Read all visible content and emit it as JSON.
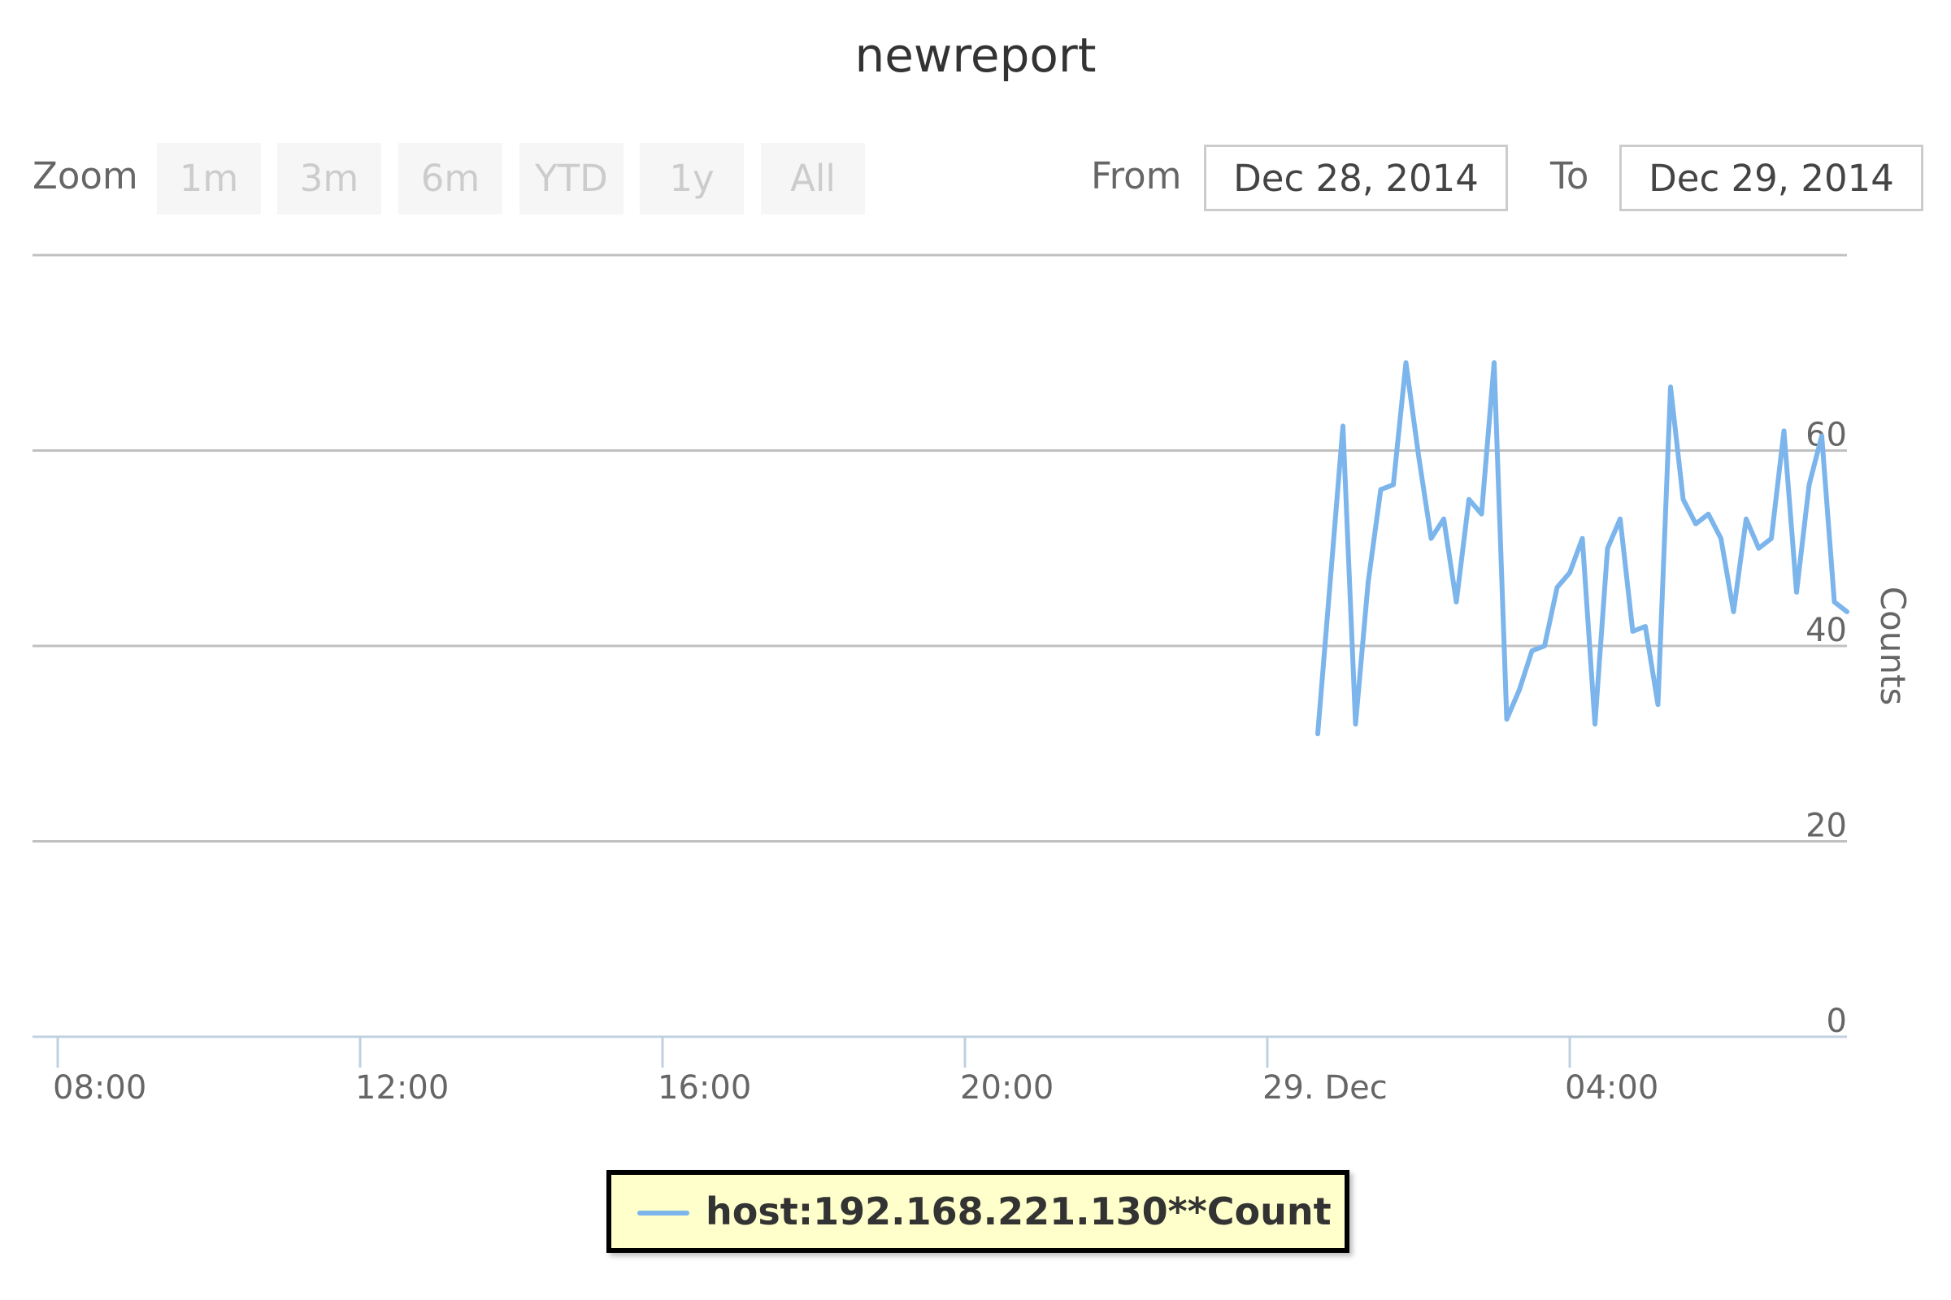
{
  "title": "newreport",
  "range_selector": {
    "zoom_label": "Zoom",
    "buttons": [
      "1m",
      "3m",
      "6m",
      "YTD",
      "1y",
      "All"
    ],
    "from_label": "From",
    "from_value": "Dec 28, 2014",
    "to_label": "To",
    "to_value": "Dec 29, 2014"
  },
  "colors": {
    "series": "#7cb5ec",
    "grid": "#c0c0c0",
    "axis": "#c0d0e0",
    "legend_bg": "#ffffcc"
  },
  "legend": {
    "label": "host:192.168.221.130**Count",
    "placement": "bottom-center"
  },
  "chart_data": {
    "type": "line",
    "title": "newreport",
    "ylabel": "Counts",
    "xlabel": "",
    "grid": true,
    "ylim": [
      0,
      80
    ],
    "xlim": [
      "2014-12-28 07:40",
      "2014-12-29 07:40"
    ],
    "x_ticks": [
      {
        "time": "2014-12-28 08:00",
        "label": "08:00"
      },
      {
        "time": "2014-12-28 12:00",
        "label": "12:00"
      },
      {
        "time": "2014-12-28 16:00",
        "label": "16:00"
      },
      {
        "time": "2014-12-28 20:00",
        "label": "20:00"
      },
      {
        "time": "2014-12-29 00:00",
        "label": "29. Dec"
      },
      {
        "time": "2014-12-29 04:00",
        "label": "04:00"
      }
    ],
    "y_ticks": [
      0,
      20,
      40,
      60,
      80
    ],
    "y_tick_labels": [
      "0",
      "20",
      "40",
      "60"
    ],
    "series": [
      {
        "name": "host:192.168.221.130**Count",
        "points": [
          [
            "2014-12-29 00:40",
            31
          ],
          [
            "2014-12-29 01:00",
            62.5
          ],
          [
            "2014-12-29 01:10",
            32
          ],
          [
            "2014-12-29 01:20",
            46.5
          ],
          [
            "2014-12-29 01:30",
            56
          ],
          [
            "2014-12-29 01:40",
            56.5
          ],
          [
            "2014-12-29 01:50",
            69
          ],
          [
            "2014-12-29 02:00",
            59.5
          ],
          [
            "2014-12-29 02:10",
            51
          ],
          [
            "2014-12-29 02:20",
            53
          ],
          [
            "2014-12-29 02:30",
            44.5
          ],
          [
            "2014-12-29 02:40",
            55
          ],
          [
            "2014-12-29 02:50",
            53.5
          ],
          [
            "2014-12-29 03:00",
            69
          ],
          [
            "2014-12-29 03:10",
            32.5
          ],
          [
            "2014-12-29 03:20",
            35.5
          ],
          [
            "2014-12-29 03:30",
            39.5
          ],
          [
            "2014-12-29 03:40",
            40
          ],
          [
            "2014-12-29 03:50",
            46
          ],
          [
            "2014-12-29 04:00",
            47.5
          ],
          [
            "2014-12-29 04:10",
            51
          ],
          [
            "2014-12-29 04:20",
            32
          ],
          [
            "2014-12-29 04:30",
            50
          ],
          [
            "2014-12-29 04:40",
            53
          ],
          [
            "2014-12-29 04:50",
            41.5
          ],
          [
            "2014-12-29 05:00",
            42
          ],
          [
            "2014-12-29 05:10",
            34
          ],
          [
            "2014-12-29 05:20",
            66.5
          ],
          [
            "2014-12-29 05:30",
            55
          ],
          [
            "2014-12-29 05:40",
            52.5
          ],
          [
            "2014-12-29 05:50",
            53.5
          ],
          [
            "2014-12-29 06:00",
            51
          ],
          [
            "2014-12-29 06:10",
            43.5
          ],
          [
            "2014-12-29 06:20",
            53
          ],
          [
            "2014-12-29 06:30",
            50
          ],
          [
            "2014-12-29 06:40",
            51
          ],
          [
            "2014-12-29 06:50",
            62
          ],
          [
            "2014-12-29 07:00",
            45.5
          ],
          [
            "2014-12-29 07:10",
            56.5
          ],
          [
            "2014-12-29 07:20",
            61.5
          ],
          [
            "2014-12-29 07:30",
            44.5
          ],
          [
            "2014-12-29 07:40",
            43.5
          ]
        ]
      }
    ]
  }
}
